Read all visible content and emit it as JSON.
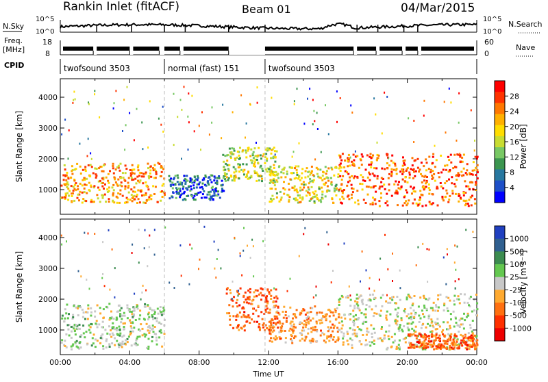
{
  "header": {
    "site_title": "Rankin Inlet (fitACF)",
    "beam_title": "Beam 01",
    "date_title": "04/Mar/2015"
  },
  "noise_panel": {
    "left_label": "N.Sky",
    "right_label": "N.Search",
    "left_ticks": [
      "10^5",
      "10^0"
    ],
    "right_ticks": [
      "10^5",
      "10^0"
    ]
  },
  "freq_panel": {
    "left_label_line1": "Freq.",
    "left_label_line2": "[MHz]",
    "right_label": "Nave",
    "left_ticks": [
      "18",
      "8"
    ],
    "right_ticks": [
      "60",
      "0"
    ]
  },
  "cpid_panel": {
    "label": "CPID",
    "segments": [
      {
        "text": "twofsound 3503",
        "start_hour": 0.0,
        "end_hour": 6.0
      },
      {
        "text": "normal (fast) 151",
        "start_hour": 6.0,
        "end_hour": 11.8
      },
      {
        "text": "twofsound 3503",
        "start_hour": 11.8,
        "end_hour": 24.0
      }
    ]
  },
  "power_colorbar": {
    "title": "Power [dB]",
    "ticks": [
      "28",
      "24",
      "20",
      "16",
      "12",
      "8",
      "4"
    ],
    "colors": [
      "#ff0000",
      "#ff3300",
      "#ff7700",
      "#ffb000",
      "#ffdd00",
      "#c8dc32",
      "#78c864",
      "#3c9650",
      "#2878a0",
      "#1e50c8",
      "#0000ff"
    ]
  },
  "velocity_colorbar": {
    "title": "Velocity [m s⁻¹]",
    "ticks": [
      "1000",
      "500",
      "100",
      "25",
      "-25",
      "-100",
      "-500",
      "-1000"
    ],
    "colors": [
      "#2040c0",
      "#306090",
      "#3c8c50",
      "#64c850",
      "#c8c8c8",
      "#ffaa30",
      "#ff7010",
      "#ff3000",
      "#ee0000"
    ]
  },
  "chart_data": [
    {
      "type": "heatmap",
      "panel": "power",
      "title": "",
      "xlabel": "",
      "ylabel": "Slant Range [km]",
      "ylim": [
        200,
        4600
      ],
      "xlim": [
        0,
        24
      ],
      "y_ticks": [
        "4000",
        "3000",
        "2000",
        "1000"
      ],
      "quantity": "Power [dB]",
      "color_range": [
        0,
        32
      ],
      "regions": [
        {
          "x": [
            0,
            6
          ],
          "y": [
            600,
            1900
          ],
          "level": 22
        },
        {
          "x": [
            6.2,
            9.5
          ],
          "y": [
            700,
            1500
          ],
          "level": 6
        },
        {
          "x": [
            9.3,
            12.5
          ],
          "y": [
            1300,
            2400
          ],
          "level": 16
        },
        {
          "x": [
            12,
            16
          ],
          "y": [
            600,
            1800
          ],
          "level": 18
        },
        {
          "x": [
            16,
            24
          ],
          "y": [
            500,
            2200
          ],
          "level": 26
        }
      ]
    },
    {
      "type": "heatmap",
      "panel": "velocity",
      "title": "",
      "xlabel": "Time UT",
      "ylabel": "Slant Range [km]",
      "ylim": [
        200,
        4600
      ],
      "xlim": [
        0,
        24
      ],
      "x_ticks": [
        "00:00",
        "04:00",
        "08:00",
        "12:00",
        "16:00",
        "20:00",
        "00:00"
      ],
      "y_ticks": [
        "4000",
        "3000",
        "2000",
        "1000"
      ],
      "quantity": "Velocity [m s⁻¹]",
      "color_range": [
        -1000,
        1000
      ],
      "regions": [
        {
          "x": [
            0,
            6
          ],
          "y": [
            400,
            1900
          ],
          "level": 100
        },
        {
          "x": [
            9.5,
            12.5
          ],
          "y": [
            1000,
            2400
          ],
          "level": -500
        },
        {
          "x": [
            12,
            16
          ],
          "y": [
            600,
            1800
          ],
          "level": -300
        },
        {
          "x": [
            16,
            24
          ],
          "y": [
            400,
            2200
          ],
          "level": 0
        },
        {
          "x": [
            20,
            24
          ],
          "y": [
            400,
            900
          ],
          "level": -500
        }
      ]
    }
  ]
}
